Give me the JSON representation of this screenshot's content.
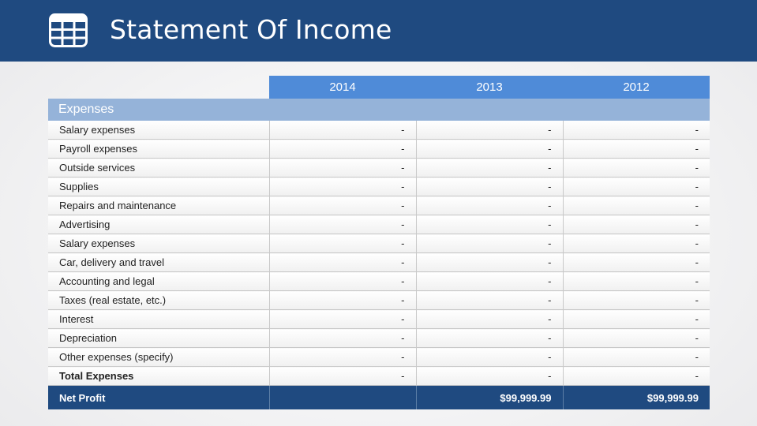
{
  "header": {
    "title": "Statement Of Income",
    "icon": "table-icon",
    "color": "#1f4a80"
  },
  "table": {
    "years": [
      "2014",
      "2013",
      "2012"
    ],
    "section_label": "Expenses",
    "rows": [
      {
        "label": "Salary expenses",
        "values": [
          "-",
          "-",
          "-"
        ]
      },
      {
        "label": "Payroll expenses",
        "values": [
          "-",
          "-",
          "-"
        ]
      },
      {
        "label": "Outside services",
        "values": [
          "-",
          "-",
          "-"
        ]
      },
      {
        "label": "Supplies",
        "values": [
          "-",
          "-",
          "-"
        ]
      },
      {
        "label": "Repairs and maintenance",
        "values": [
          "-",
          "-",
          "-"
        ]
      },
      {
        "label": "Advertising",
        "values": [
          "-",
          "-",
          "-"
        ]
      },
      {
        "label": "Salary expenses",
        "values": [
          "-",
          "-",
          "-"
        ]
      },
      {
        "label": "Car, delivery and travel",
        "values": [
          "-",
          "-",
          "-"
        ]
      },
      {
        "label": "Accounting and legal",
        "values": [
          "-",
          "-",
          "-"
        ]
      },
      {
        "label": "Taxes (real estate, etc.)",
        "values": [
          "-",
          "-",
          "-"
        ]
      },
      {
        "label": "Interest",
        "values": [
          "-",
          "-",
          "-"
        ]
      },
      {
        "label": "Depreciation",
        "values": [
          "-",
          "-",
          "-"
        ]
      },
      {
        "label": "Other expenses (specify)",
        "values": [
          "-",
          "-",
          "-"
        ]
      }
    ],
    "total": {
      "label": "Total Expenses",
      "values": [
        "-",
        "-",
        "-"
      ]
    },
    "net_profit": {
      "label": "Net Profit",
      "values": [
        "",
        "$99,999.99",
        "$99,999.99"
      ]
    },
    "colors": {
      "year_header": "#4f8bd8",
      "section": "#95b3d9",
      "net_row": "#1f4a80"
    }
  }
}
